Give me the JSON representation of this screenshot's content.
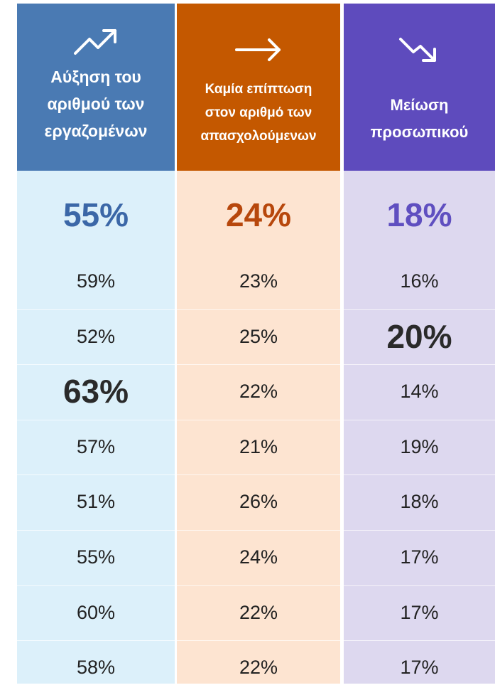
{
  "columns": [
    {
      "header": [
        "Αύξηση του",
        "αριθμού των",
        "εργαζομένων"
      ],
      "total": "55%",
      "values": [
        "59%",
        "52%",
        "63%",
        "57%",
        "51%",
        "55%",
        "60%",
        "58%"
      ],
      "emphasized_row": 2
    },
    {
      "header": [
        "Καμία επίπτωση",
        "στον αριθμό των",
        "απασχολούμενων"
      ],
      "total": "24%",
      "values": [
        "23%",
        "25%",
        "22%",
        "21%",
        "26%",
        "24%",
        "22%",
        "22%"
      ]
    },
    {
      "header": [
        "Μείωση",
        "προσωπικού"
      ],
      "total": "18%",
      "values": [
        "16%",
        "20%",
        "14%",
        "19%",
        "18%",
        "17%",
        "17%",
        "17%"
      ],
      "emphasized_row": 1
    }
  ]
}
